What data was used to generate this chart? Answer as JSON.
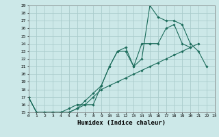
{
  "xlabel": "Humidex (Indice chaleur)",
  "bg_color": "#cce8e8",
  "grid_color": "#aacccc",
  "line_color": "#1a6b5a",
  "xmin": 0,
  "xmax": 23,
  "ymin": 15,
  "ymax": 29,
  "series": [
    {
      "x": [
        0,
        1,
        2,
        3,
        4,
        5,
        6,
        7,
        8,
        9,
        10,
        11,
        12,
        13,
        14,
        15,
        16,
        17,
        18,
        19,
        20,
        21,
        22
      ],
      "y": [
        17,
        15,
        15,
        15,
        15,
        15,
        15.5,
        16,
        16,
        18.5,
        21,
        23,
        23,
        21,
        22,
        29,
        27.5,
        27,
        27,
        26.5,
        24,
        23,
        21
      ]
    },
    {
      "x": [
        0,
        1,
        2,
        3,
        4,
        5,
        6,
        7,
        8,
        9,
        10,
        11,
        12,
        13,
        14,
        15,
        16,
        17,
        18,
        19,
        20
      ],
      "y": [
        17,
        15,
        15,
        15,
        15,
        15,
        15.5,
        16.5,
        17.5,
        18.5,
        21,
        23,
        23.5,
        21,
        24,
        24,
        24,
        26,
        26.5,
        24,
        23.5
      ]
    },
    {
      "x": [
        0,
        1,
        2,
        3,
        4,
        5,
        6,
        7,
        8,
        9,
        10,
        11,
        12,
        13,
        14,
        15,
        16,
        17,
        18,
        19,
        20,
        21,
        22,
        23
      ],
      "y": [
        17,
        15,
        15,
        15,
        15,
        15.5,
        16,
        16,
        17,
        18,
        18.5,
        19,
        19.5,
        20,
        20.5,
        21,
        21.5,
        22,
        22.5,
        23,
        23.5,
        24,
        null,
        null
      ]
    }
  ]
}
